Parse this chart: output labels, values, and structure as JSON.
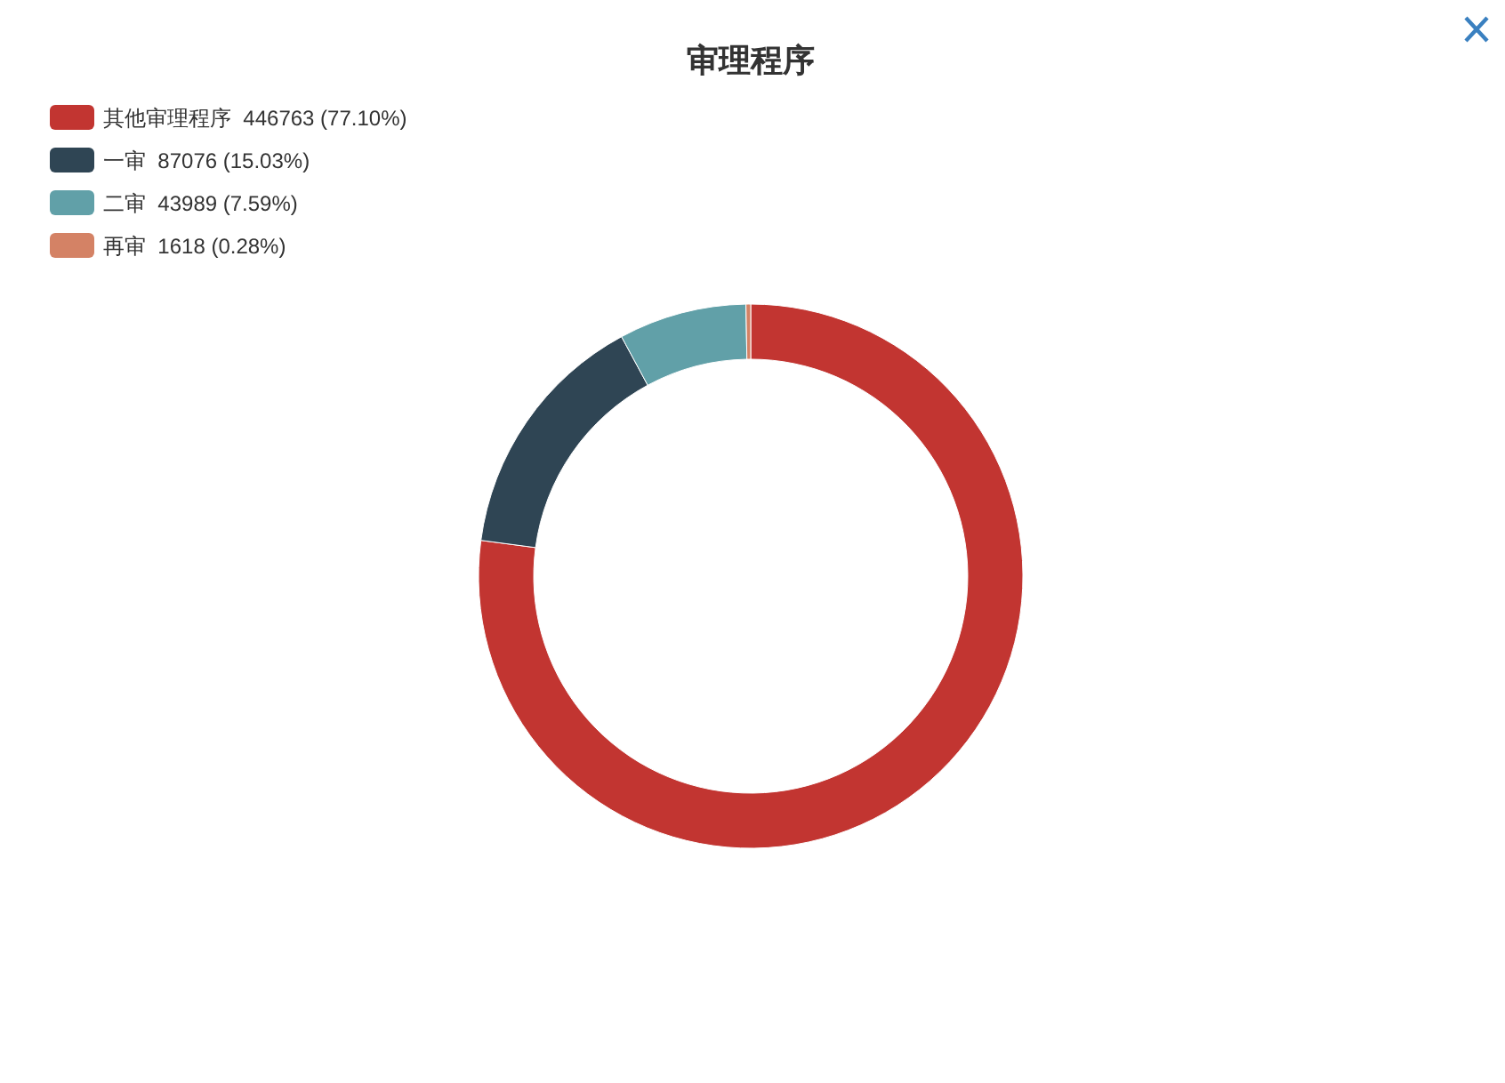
{
  "chart_data": {
    "type": "donut",
    "title": "审理程序",
    "categories": [
      "其他审理程序",
      "一审",
      "二审",
      "再审"
    ],
    "values": [
      446763,
      87076,
      43989,
      1618
    ],
    "value_labels": [
      "446763 (77.10%)",
      "87076 (15.03%)",
      "43989 (7.59%)",
      "1618 (0.28%)"
    ],
    "colors": [
      "#c23531",
      "#2f4554",
      "#61a0a8",
      "#d48265"
    ],
    "legend": "top left"
  }
}
